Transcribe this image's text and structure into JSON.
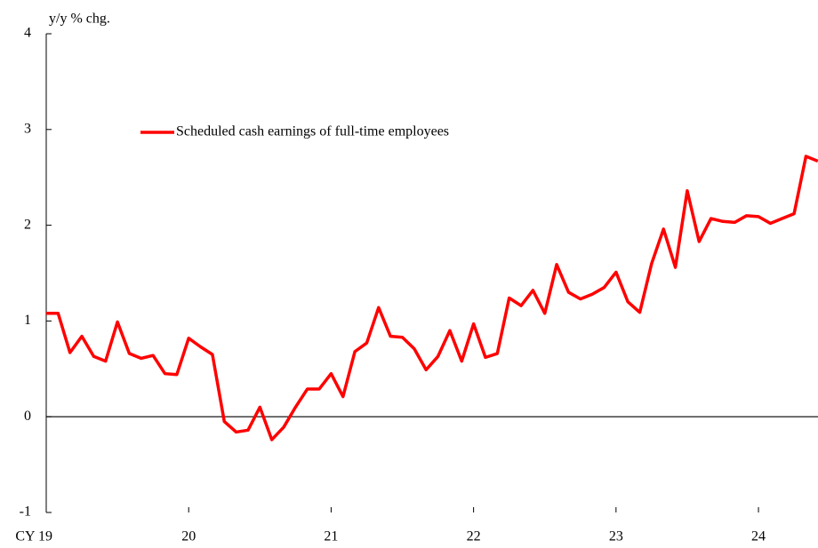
{
  "chart_data": {
    "type": "line",
    "y_label": "y/y % chg.",
    "categories": [
      "CY 19",
      null,
      null,
      null,
      null,
      null,
      null,
      null,
      null,
      null,
      null,
      null,
      "20",
      null,
      null,
      null,
      null,
      null,
      null,
      null,
      null,
      null,
      null,
      null,
      "21",
      null,
      null,
      null,
      null,
      null,
      null,
      null,
      null,
      null,
      null,
      null,
      "22",
      null,
      null,
      null,
      null,
      null,
      null,
      null,
      null,
      null,
      null,
      null,
      "23",
      null,
      null,
      null,
      null,
      null,
      null,
      null,
      null,
      null,
      null,
      null,
      "24",
      null,
      null,
      null,
      null,
      null
    ],
    "series": [
      {
        "name": "Scheduled cash earnings of full-time employees",
        "color": "#ff0000",
        "values": [
          1.08,
          1.08,
          0.67,
          0.84,
          0.63,
          0.58,
          0.99,
          0.66,
          0.61,
          0.64,
          0.45,
          0.44,
          0.82,
          0.73,
          0.65,
          -0.05,
          -0.16,
          -0.14,
          0.1,
          -0.24,
          -0.11,
          0.1,
          0.29,
          0.29,
          0.45,
          0.21,
          0.68,
          0.77,
          1.14,
          0.84,
          0.83,
          0.71,
          0.49,
          0.63,
          0.9,
          0.58,
          0.97,
          0.62,
          0.66,
          1.24,
          1.16,
          1.32,
          1.08,
          1.59,
          1.3,
          1.23,
          1.28,
          1.35,
          1.51,
          1.2,
          1.09,
          1.6,
          1.96,
          1.56,
          2.36,
          1.83,
          2.07,
          2.04,
          2.03,
          2.1,
          2.09,
          2.02,
          2.07,
          2.12,
          2.72,
          2.67
        ]
      }
    ],
    "ylim": [
      -1,
      4
    ],
    "yticks": [
      -1,
      0,
      1,
      2,
      3,
      4
    ]
  }
}
